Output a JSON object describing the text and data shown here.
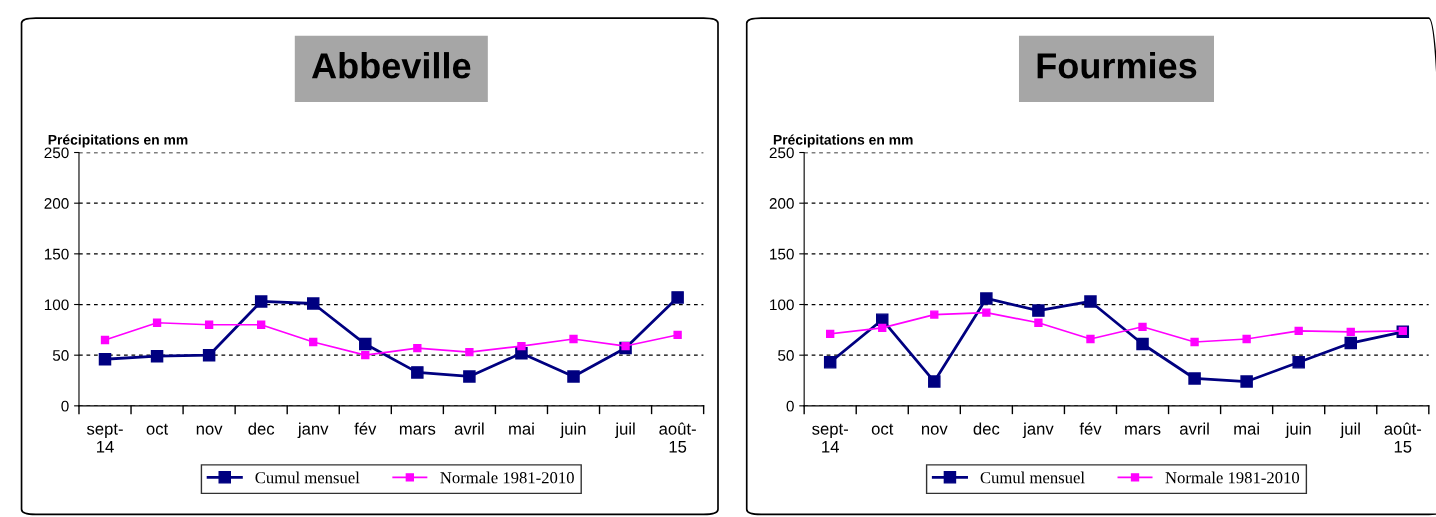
{
  "chart_data": [
    {
      "type": "line",
      "title": "Abbeville",
      "ylabel": "Précipitations en mm",
      "categories": [
        "sept-\n14",
        "oct",
        "nov",
        "dec",
        "janv",
        "fév",
        "mars",
        "avril",
        "mai",
        "juin",
        "juil",
        "août-\n15"
      ],
      "series": [
        {
          "name": "Cumul mensuel",
          "color": "#000080",
          "values": [
            46,
            49,
            50,
            103,
            101,
            61,
            33,
            29,
            52,
            29,
            57,
            107
          ]
        },
        {
          "name": "Normale 1981-2010",
          "color": "#ff00ff",
          "values": [
            65,
            82,
            80,
            80,
            63,
            50,
            57,
            53,
            59,
            66,
            59,
            70
          ]
        }
      ],
      "ylim": [
        0,
        250
      ],
      "yticks": [
        0,
        50,
        100,
        150,
        200,
        250
      ],
      "grid": "y",
      "legend": "bottom",
      "marker": "square",
      "line_style": "solid"
    },
    {
      "type": "line",
      "title": "Fourmies",
      "ylabel": "Précipitations en mm",
      "categories": [
        "sept-\n14",
        "oct",
        "nov",
        "dec",
        "janv",
        "fév",
        "mars",
        "avril",
        "mai",
        "juin",
        "juil",
        "août-\n15"
      ],
      "series": [
        {
          "name": "Cumul mensuel",
          "color": "#000080",
          "values": [
            43,
            85,
            24,
            106,
            94,
            103,
            61,
            27,
            24,
            43,
            62,
            73
          ]
        },
        {
          "name": "Normale 1981-2010",
          "color": "#ff00ff",
          "values": [
            71,
            77,
            90,
            92,
            82,
            66,
            78,
            63,
            66,
            74,
            73,
            74
          ]
        }
      ],
      "ylim": [
        0,
        250
      ],
      "yticks": [
        0,
        50,
        100,
        150,
        200,
        250
      ],
      "grid": "y",
      "legend": "bottom",
      "marker": "square",
      "line_style": "solid"
    }
  ]
}
